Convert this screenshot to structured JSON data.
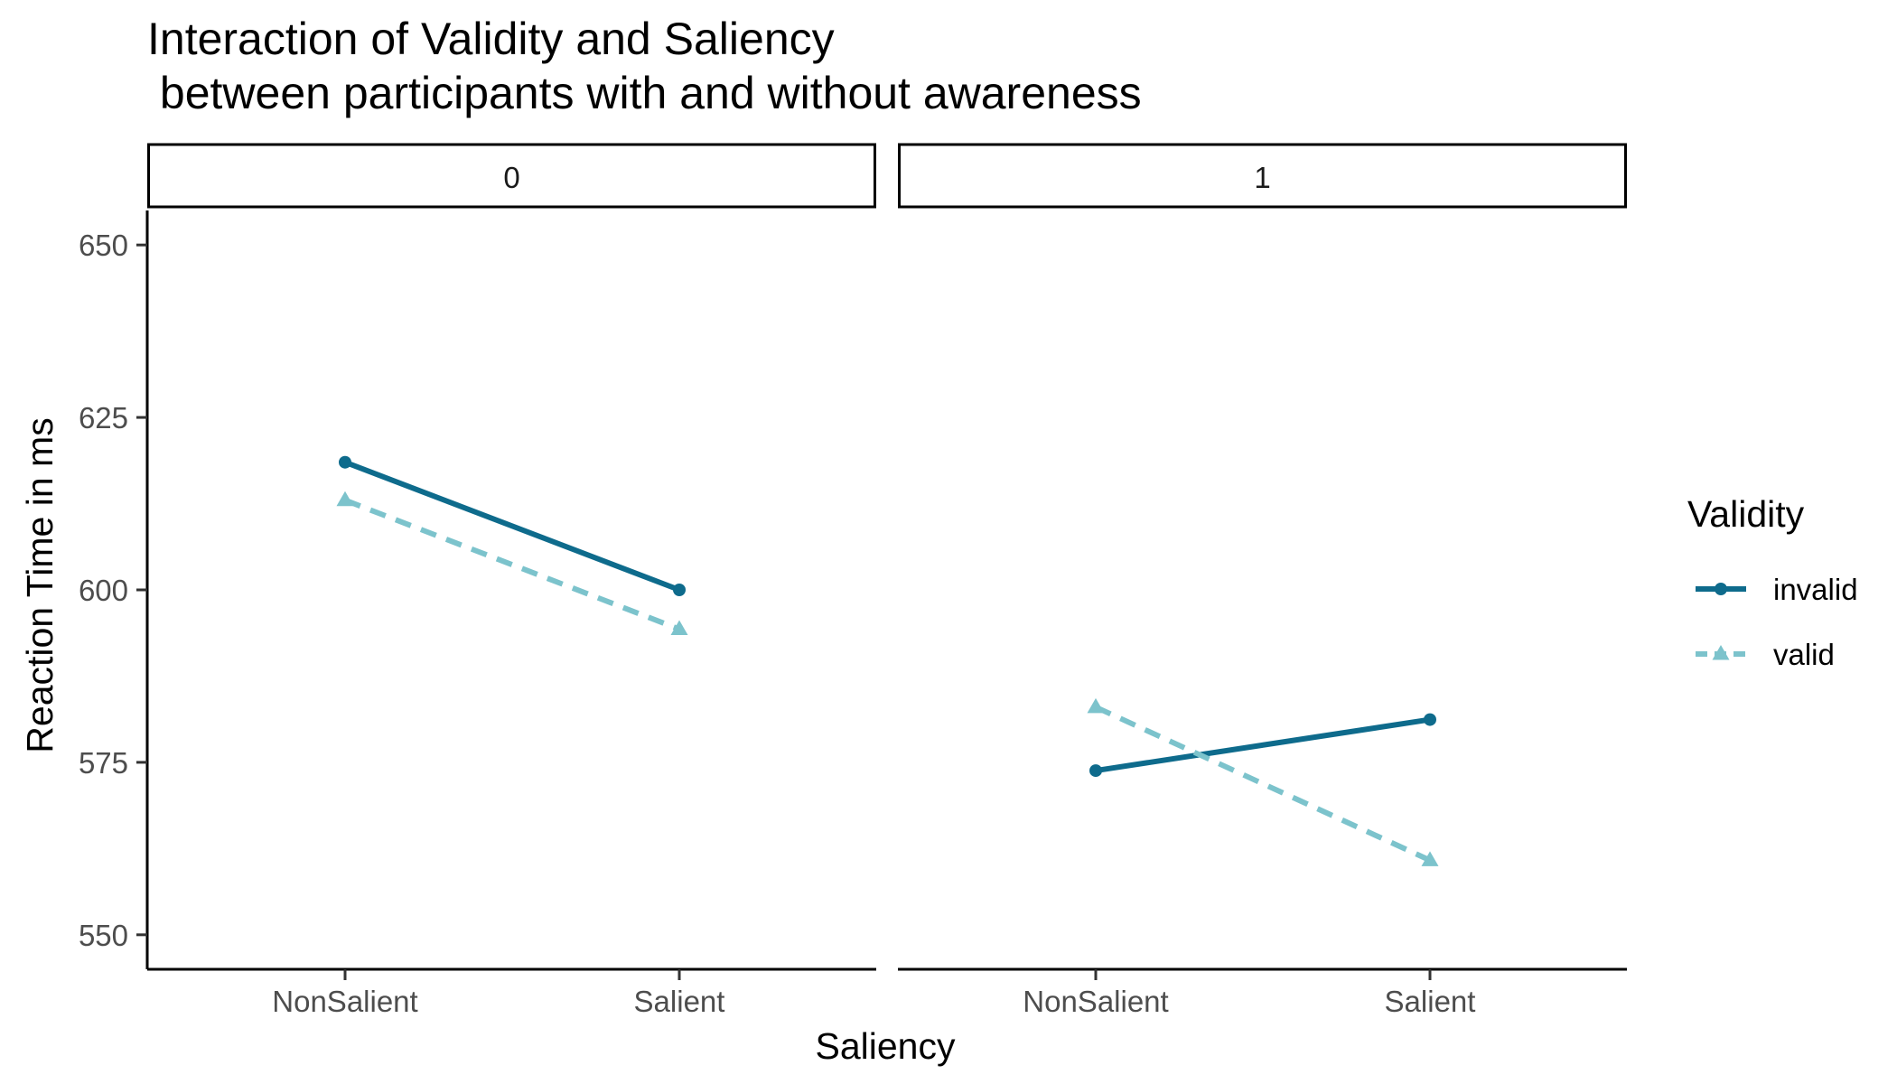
{
  "chart_data": {
    "type": "line",
    "title_line1": "Interaction of Validity and Saliency",
    "title_line2": " between participants with and without awareness",
    "xlabel": "Saliency",
    "ylabel": "Reaction Time in ms",
    "ylim": [
      545,
      655
    ],
    "yticks": [
      "550",
      "575",
      "600",
      "625",
      "650"
    ],
    "categories": [
      "NonSalient",
      "Salient"
    ],
    "grid": false,
    "legend": {
      "title": "Validity",
      "position": "right",
      "entries": [
        "invalid",
        "valid"
      ]
    },
    "panels": [
      {
        "label": "0",
        "series": [
          {
            "name": "invalid",
            "values": [
              618.5,
              600.0
            ]
          },
          {
            "name": "valid",
            "values": [
              613.0,
              594.3
            ]
          }
        ]
      },
      {
        "label": "1",
        "series": [
          {
            "name": "invalid",
            "values": [
              573.8,
              581.2
            ]
          },
          {
            "name": "valid",
            "values": [
              583.0,
              560.8
            ]
          }
        ]
      }
    ],
    "colors": {
      "invalid": "#0e6b8c",
      "valid": "#7cc3cc"
    }
  }
}
